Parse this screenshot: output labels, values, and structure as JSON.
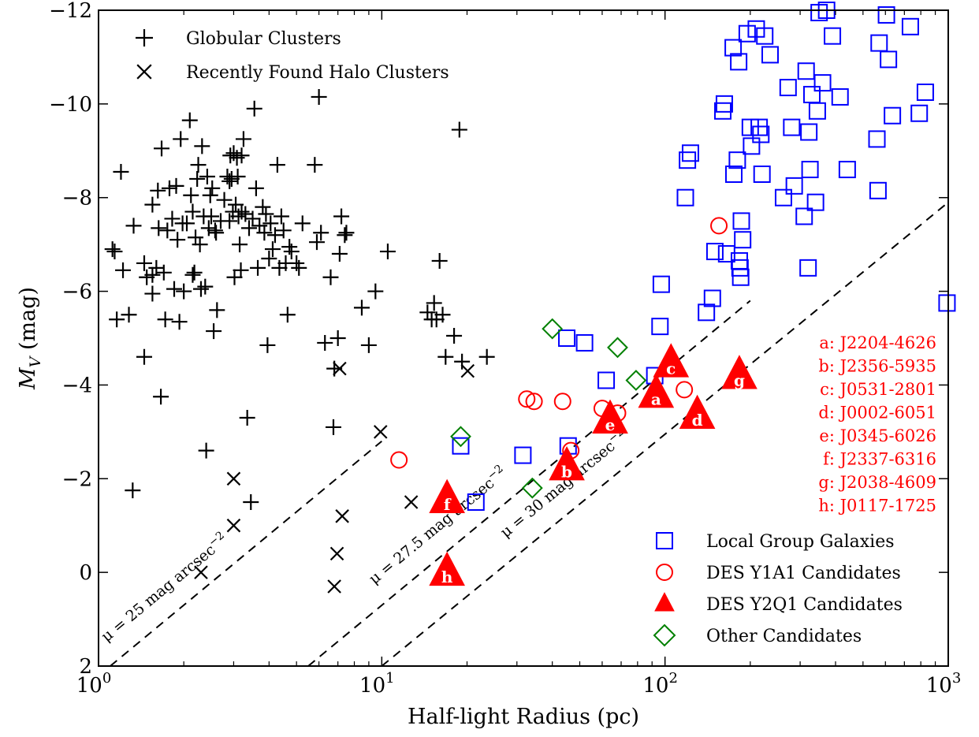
{
  "chart_data": {
    "type": "scatter",
    "xlabel": "Half-light Radius (pc)",
    "ylabel_main": "M",
    "ylabel_sub": "V",
    "ylabel_unit": "(mag)",
    "x_scale": "log",
    "xlim": [
      1,
      1000
    ],
    "ylim": [
      2,
      -12
    ],
    "y_inverted": true,
    "x_ticks": [
      {
        "base": "10",
        "exp": "0"
      },
      {
        "base": "10",
        "exp": "1"
      },
      {
        "base": "10",
        "exp": "2"
      },
      {
        "base": "10",
        "exp": "3"
      }
    ],
    "y_ticks": [
      "−12",
      "−10",
      "−8",
      "−6",
      "−4",
      "−2",
      "0",
      "2"
    ],
    "legend_top": [
      {
        "label": "Globular Clusters",
        "marker": "plus",
        "color": "#000000"
      },
      {
        "label": "Recently Found Halo Clusters",
        "marker": "x",
        "color": "#000000"
      }
    ],
    "legend_bottom": [
      {
        "label": "Local Group Galaxies",
        "marker": "square",
        "color": "#0000ff"
      },
      {
        "label": "DES Y1A1 Candidates",
        "marker": "circle",
        "color": "#ff0000"
      },
      {
        "label": "DES Y2Q1 Candidates",
        "marker": "triangle",
        "color": "#ff0000"
      },
      {
        "label": "Other Candidates",
        "marker": "diamond",
        "color": "#008000"
      }
    ],
    "candidate_list": [
      "a:  J2204-4626",
      "b:  J2356-5935",
      "c:  J0531-2801",
      "d:  J0002-6051",
      "e:  J0345-6026",
      "f:  J2337-6316",
      "g:  J2038-4609",
      "h:  J0117-1725"
    ],
    "sb_lines": [
      {
        "label": "μ = 25 mag arcsec",
        "sup": "−2",
        "x": [
          1.1,
          10
        ],
        "y": [
          2,
          -2.8
        ]
      },
      {
        "label": "μ = 27.5 mag arcsec",
        "sup": "−2",
        "x": [
          5.5,
          200
        ],
        "y": [
          2,
          -5.8
        ]
      },
      {
        "label": "μ = 30 mag arcsec",
        "sup": "−2",
        "x": [
          10,
          1000
        ],
        "y": [
          2,
          -7.9
        ]
      }
    ],
    "series": [
      {
        "name": "Globular Clusters",
        "marker": "plus",
        "color": "#000000",
        "points": [
          [
            1.2,
            -8.55
          ],
          [
            1.14,
            -6.85
          ],
          [
            1.16,
            -5.4
          ],
          [
            1.22,
            -6.45
          ],
          [
            1.28,
            -5.5
          ],
          [
            1.33,
            -7.4
          ],
          [
            1.45,
            -4.6
          ],
          [
            1.45,
            -6.6
          ],
          [
            1.48,
            -6.3
          ],
          [
            1.55,
            -7.85
          ],
          [
            1.55,
            -5.95
          ],
          [
            1.6,
            -6.5
          ],
          [
            1.62,
            -8.15
          ],
          [
            1.63,
            -7.35
          ],
          [
            1.66,
            -3.75
          ],
          [
            1.67,
            -9.05
          ],
          [
            1.7,
            -6.4
          ],
          [
            1.72,
            -5.4
          ],
          [
            1.75,
            -7.3
          ],
          [
            1.78,
            -8.2
          ],
          [
            1.82,
            -7.55
          ],
          [
            1.85,
            -6.05
          ],
          [
            1.88,
            -8.25
          ],
          [
            1.9,
            -7.1
          ],
          [
            1.93,
            -5.35
          ],
          [
            1.95,
            -9.25
          ],
          [
            1.98,
            -7.45
          ],
          [
            2.0,
            -6.0
          ],
          [
            2.05,
            -7.45
          ],
          [
            2.1,
            -9.65
          ],
          [
            2.12,
            -8.05
          ],
          [
            2.15,
            -7.7
          ],
          [
            2.18,
            -6.4
          ],
          [
            2.2,
            -7.15
          ],
          [
            2.23,
            -8.4
          ],
          [
            2.25,
            -8.7
          ],
          [
            2.28,
            -7.0
          ],
          [
            2.3,
            -6.05
          ],
          [
            2.32,
            -9.1
          ],
          [
            2.35,
            -7.6
          ],
          [
            2.38,
            -6.1
          ],
          [
            2.4,
            -2.6
          ],
          [
            2.42,
            -8.45
          ],
          [
            2.45,
            -7.35
          ],
          [
            2.48,
            -8.05
          ],
          [
            2.5,
            -7.6
          ],
          [
            2.52,
            -8.2
          ],
          [
            2.55,
            -5.15
          ],
          [
            2.58,
            -7.3
          ],
          [
            2.62,
            -5.6
          ],
          [
            2.7,
            -7.5
          ],
          [
            2.78,
            -7.95
          ],
          [
            2.85,
            -8.45
          ],
          [
            2.9,
            -7.5
          ],
          [
            2.92,
            -8.9
          ],
          [
            2.95,
            -8.4
          ],
          [
            2.98,
            -7.7
          ],
          [
            3.0,
            -8.95
          ],
          [
            3.02,
            -6.3
          ],
          [
            3.05,
            -7.85
          ],
          [
            3.08,
            -8.85
          ],
          [
            3.1,
            -8.45
          ],
          [
            3.12,
            -7.6
          ],
          [
            3.15,
            -7.0
          ],
          [
            3.18,
            -6.45
          ],
          [
            3.2,
            -8.9
          ],
          [
            3.25,
            -9.25
          ],
          [
            3.3,
            -7.65
          ],
          [
            3.35,
            -3.3
          ],
          [
            3.4,
            -7.35
          ],
          [
            3.45,
            -1.5
          ],
          [
            3.5,
            -7.55
          ],
          [
            3.55,
            -9.9
          ],
          [
            3.6,
            -8.2
          ],
          [
            3.65,
            -6.5
          ],
          [
            3.7,
            -7.4
          ],
          [
            3.8,
            -7.8
          ],
          [
            3.85,
            -7.25
          ],
          [
            3.9,
            -7.65
          ],
          [
            3.95,
            -4.85
          ],
          [
            4.0,
            -6.7
          ],
          [
            4.05,
            -7.45
          ],
          [
            4.12,
            -6.9
          ],
          [
            4.2,
            -7.2
          ],
          [
            4.28,
            -8.7
          ],
          [
            4.35,
            -6.5
          ],
          [
            4.42,
            -7.6
          ],
          [
            4.5,
            -7.3
          ],
          [
            4.58,
            -6.6
          ],
          [
            4.65,
            -5.5
          ],
          [
            4.72,
            -6.95
          ],
          [
            4.8,
            -6.85
          ],
          [
            5.0,
            -6.6
          ],
          [
            5.1,
            -6.5
          ],
          [
            5.25,
            -7.45
          ],
          [
            5.8,
            -8.7
          ],
          [
            5.9,
            -7.05
          ],
          [
            6.0,
            -10.15
          ],
          [
            6.1,
            -7.25
          ],
          [
            6.3,
            -4.9
          ],
          [
            6.6,
            -6.3
          ],
          [
            6.75,
            -3.1
          ],
          [
            6.8,
            -4.35
          ],
          [
            7.0,
            -5.0
          ],
          [
            7.1,
            -6.8
          ],
          [
            7.2,
            -7.6
          ],
          [
            7.4,
            -7.2
          ],
          [
            7.5,
            -7.25
          ],
          [
            8.5,
            -5.65
          ],
          [
            9.0,
            -4.85
          ],
          [
            9.5,
            -6.0
          ],
          [
            10.5,
            -6.85
          ],
          [
            14.5,
            -5.55
          ],
          [
            15.0,
            -5.4
          ],
          [
            15.3,
            -5.75
          ],
          [
            15.6,
            -5.4
          ],
          [
            16.0,
            -6.65
          ],
          [
            16.4,
            -5.5
          ],
          [
            16.8,
            -4.6
          ],
          [
            18.0,
            -5.05
          ],
          [
            18.8,
            -9.45
          ],
          [
            19.2,
            -4.5
          ],
          [
            23.5,
            -4.6
          ],
          [
            1.32,
            -1.75
          ],
          [
            1.12,
            -6.9
          ],
          [
            1.55,
            -6.35
          ],
          [
            2.15,
            -6.35
          ],
          [
            2.6,
            -7.25
          ],
          [
            2.9,
            -8.35
          ],
          [
            3.2,
            -7.7
          ]
        ]
      },
      {
        "name": "Recently Found Halo Clusters",
        "marker": "x",
        "color": "#000000",
        "points": [
          [
            2.3,
            0.0
          ],
          [
            3.0,
            -2.0
          ],
          [
            3.0,
            -1.0
          ],
          [
            6.8,
            0.3
          ],
          [
            6.95,
            -0.4
          ],
          [
            7.1,
            -4.35
          ],
          [
            7.25,
            -1.2
          ],
          [
            9.9,
            -3.0
          ],
          [
            12.7,
            -1.5
          ],
          [
            20.1,
            -4.3
          ]
        ]
      },
      {
        "name": "Local Group Galaxies",
        "marker": "square",
        "color": "#0000ff",
        "points": [
          [
            19.0,
            -2.7
          ],
          [
            21.5,
            -1.5
          ],
          [
            31.5,
            -2.5
          ],
          [
            45.0,
            -5.0
          ],
          [
            45.5,
            -2.7
          ],
          [
            52.0,
            -4.9
          ],
          [
            62.0,
            -4.1
          ],
          [
            92.0,
            -4.2
          ],
          [
            96.0,
            -5.25
          ],
          [
            97.0,
            -6.15
          ],
          [
            118.0,
            -8.0
          ],
          [
            120.0,
            -8.8
          ],
          [
            123.0,
            -8.95
          ],
          [
            140.0,
            -5.55
          ],
          [
            147.0,
            -5.85
          ],
          [
            150.0,
            -6.85
          ],
          [
            160.0,
            -9.85
          ],
          [
            162.0,
            -10.0
          ],
          [
            165.0,
            -6.8
          ],
          [
            174.0,
            -11.2
          ],
          [
            175.0,
            -8.5
          ],
          [
            180.0,
            -8.8
          ],
          [
            182.0,
            -10.9
          ],
          [
            183.0,
            -6.65
          ],
          [
            184.0,
            -6.5
          ],
          [
            185.0,
            -6.3
          ],
          [
            186.0,
            -7.5
          ],
          [
            188.0,
            -7.1
          ],
          [
            195.0,
            -11.5
          ],
          [
            200.0,
            -9.5
          ],
          [
            202.0,
            -9.1
          ],
          [
            210.0,
            -11.6
          ],
          [
            215.0,
            -9.5
          ],
          [
            218.0,
            -9.35
          ],
          [
            220.0,
            -8.5
          ],
          [
            225.0,
            -11.45
          ],
          [
            235.0,
            -11.05
          ],
          [
            262.0,
            -8.0
          ],
          [
            272.0,
            -10.35
          ],
          [
            280.0,
            -9.5
          ],
          [
            286.0,
            -8.25
          ],
          [
            310.0,
            -7.6
          ],
          [
            315.0,
            -10.7
          ],
          [
            320.0,
            -6.5
          ],
          [
            322.0,
            -9.4
          ],
          [
            325.0,
            -8.6
          ],
          [
            330.0,
            -10.2
          ],
          [
            340.0,
            -7.9
          ],
          [
            345.0,
            -9.85
          ],
          [
            350.0,
            -11.95
          ],
          [
            360.0,
            -10.45
          ],
          [
            372.0,
            -12.0
          ],
          [
            390.0,
            -11.45
          ],
          [
            415.0,
            -10.15
          ],
          [
            440.0,
            -8.6
          ],
          [
            560.0,
            -9.25
          ],
          [
            565.0,
            -8.15
          ],
          [
            570.0,
            -11.3
          ],
          [
            605.0,
            -11.9
          ],
          [
            615.0,
            -10.95
          ],
          [
            635.0,
            -9.75
          ],
          [
            735.0,
            -11.65
          ],
          [
            790.0,
            -9.8
          ],
          [
            830.0,
            -10.25
          ],
          [
            990.0,
            -5.75
          ]
        ]
      },
      {
        "name": "DES Y1A1 Candidates",
        "marker": "circle",
        "color": "#ff0000",
        "points": [
          [
            11.5,
            -2.4
          ],
          [
            32.5,
            -3.7
          ],
          [
            34.5,
            -3.65
          ],
          [
            43.5,
            -3.65
          ],
          [
            46.5,
            -2.6
          ],
          [
            60.0,
            -3.5
          ],
          [
            68.0,
            -3.4
          ],
          [
            117.0,
            -3.9
          ],
          [
            155.0,
            -7.4
          ]
        ]
      },
      {
        "name": "DES Y2Q1 Candidates",
        "marker": "triangle",
        "color": "#ff0000",
        "points": [
          [
            93.0,
            -3.8,
            "a"
          ],
          [
            45.0,
            -2.25,
            "b"
          ],
          [
            105.0,
            -4.45,
            "c"
          ],
          [
            130.0,
            -3.35,
            "d"
          ],
          [
            64.0,
            -3.25,
            "e"
          ],
          [
            17.0,
            -1.55,
            "f"
          ],
          [
            183.0,
            -4.2,
            "g"
          ],
          [
            17.0,
            0.0,
            "h"
          ]
        ]
      },
      {
        "name": "Other Candidates",
        "marker": "diamond",
        "color": "#008000",
        "points": [
          [
            19.0,
            -2.9
          ],
          [
            34.0,
            -1.8
          ],
          [
            40.0,
            -5.2
          ],
          [
            68.0,
            -4.8
          ],
          [
            79.0,
            -4.1
          ]
        ]
      }
    ]
  }
}
